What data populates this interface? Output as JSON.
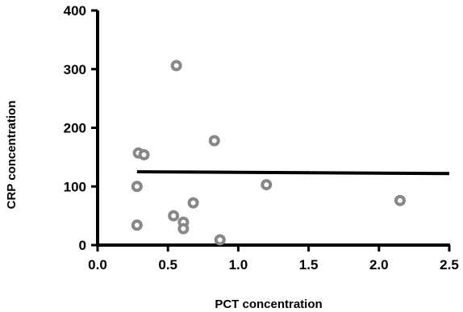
{
  "chart_data": {
    "type": "scatter",
    "title": "",
    "xlabel": "PCT concentration",
    "ylabel": "CRP concentration",
    "xlim": [
      0.0,
      2.5
    ],
    "ylim": [
      0,
      400
    ],
    "xticks": [
      "0.0",
      "0.5",
      "1.0",
      "1.5",
      "2.0",
      "2.5"
    ],
    "yticks": [
      "0",
      "100",
      "200",
      "300",
      "400"
    ],
    "grid": false,
    "legend": "none",
    "marker_color": "#888888",
    "trend_color": "#000000",
    "points": [
      {
        "x": 0.28,
        "y": 34
      },
      {
        "x": 0.28,
        "y": 100
      },
      {
        "x": 0.29,
        "y": 157
      },
      {
        "x": 0.33,
        "y": 154
      },
      {
        "x": 0.54,
        "y": 50
      },
      {
        "x": 0.56,
        "y": 306
      },
      {
        "x": 0.61,
        "y": 39
      },
      {
        "x": 0.61,
        "y": 28
      },
      {
        "x": 0.68,
        "y": 72
      },
      {
        "x": 0.83,
        "y": 178
      },
      {
        "x": 0.87,
        "y": 9
      },
      {
        "x": 1.2,
        "y": 103
      },
      {
        "x": 2.15,
        "y": 76
      }
    ],
    "trendline": {
      "x": [
        0.28,
        2.5
      ],
      "y": [
        125,
        122
      ]
    }
  }
}
